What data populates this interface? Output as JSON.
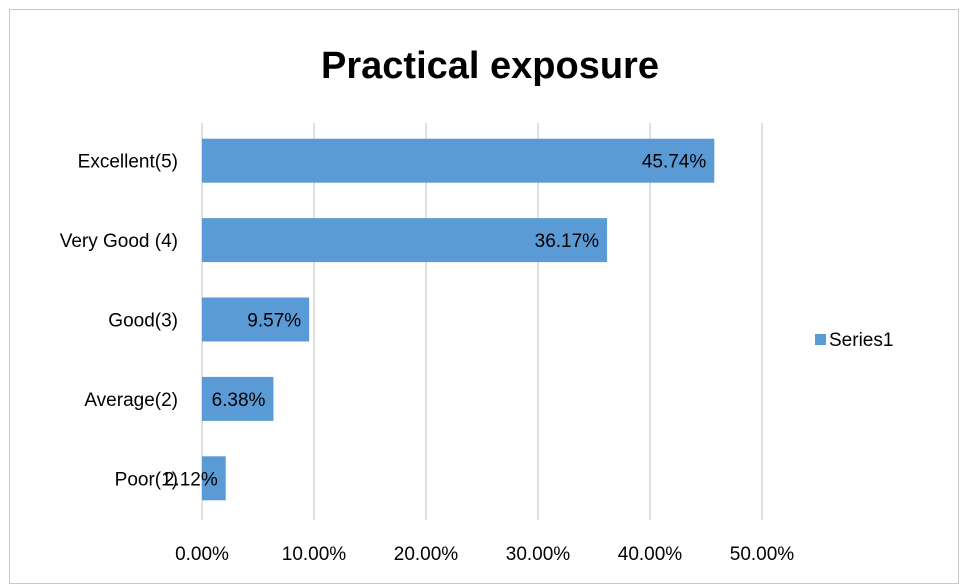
{
  "chart_data": {
    "type": "bar",
    "orientation": "horizontal",
    "title": "Practical exposure",
    "categories": [
      "Excellent(5)",
      "Very Good (4)",
      "Good(3)",
      "Average(2)",
      "Poor(1)"
    ],
    "series": [
      {
        "name": "Series1",
        "values": [
          45.74,
          36.17,
          9.57,
          6.38,
          2.12
        ],
        "color": "#5b9bd5"
      }
    ],
    "data_labels": [
      "45.74%",
      "36.17%",
      "9.57%",
      "6.38%",
      "2.12%"
    ],
    "x_ticks": [
      "0.00%",
      "10.00%",
      "20.00%",
      "30.00%",
      "40.00%",
      "50.00%"
    ],
    "xlim": [
      0,
      50
    ],
    "grid": true,
    "legend_position": "right",
    "gridline_color": "#bfbfbf"
  }
}
